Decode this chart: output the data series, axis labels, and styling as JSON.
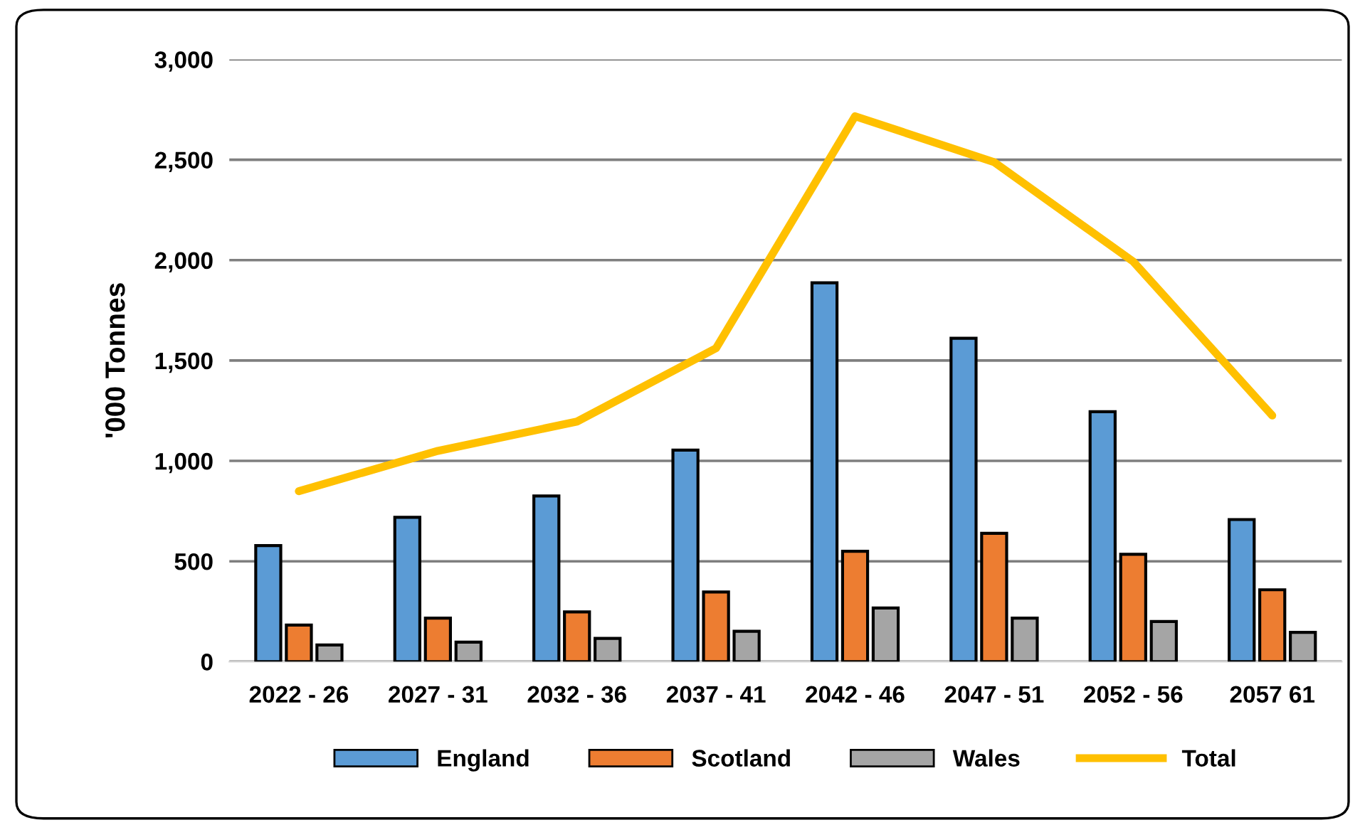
{
  "chart_data": {
    "type": "bar",
    "ylabel": "'000 Tonnes",
    "categories": [
      "2022 - 26",
      "2027 - 31",
      "2032 - 36",
      "2037 - 41",
      "2042 - 46",
      "2047 - 51",
      "2052 - 56",
      "2057 61"
    ],
    "series": [
      {
        "name": "England",
        "color": "#5b9bd5",
        "values": [
          578,
          719,
          825,
          1054,
          1887,
          1611,
          1245,
          708
        ]
      },
      {
        "name": "Scotland",
        "color": "#ed7d31",
        "values": [
          182,
          217,
          248,
          347,
          550,
          639,
          535,
          358
        ]
      },
      {
        "name": "Wales",
        "color": "#a5a5a5",
        "values": [
          83,
          97,
          116,
          151,
          267,
          217,
          200,
          146
        ]
      },
      {
        "name": "Total",
        "type": "line",
        "color": "#ffc000",
        "values": [
          849,
          1050,
          1196,
          1561,
          2717,
          2488,
          1993,
          1226
        ]
      }
    ],
    "ylim": [
      0,
      3000
    ],
    "yticks": [
      {
        "value": 0,
        "label": "0"
      },
      {
        "value": 500,
        "label": "500"
      },
      {
        "value": 1000,
        "label": "1,000"
      },
      {
        "value": 1500,
        "label": "1,500"
      },
      {
        "value": 2000,
        "label": "2,000"
      },
      {
        "value": 2500,
        "label": "2,500"
      },
      {
        "value": 3000,
        "label": "3,000"
      }
    ],
    "grid": "y",
    "legend": "bottom"
  }
}
